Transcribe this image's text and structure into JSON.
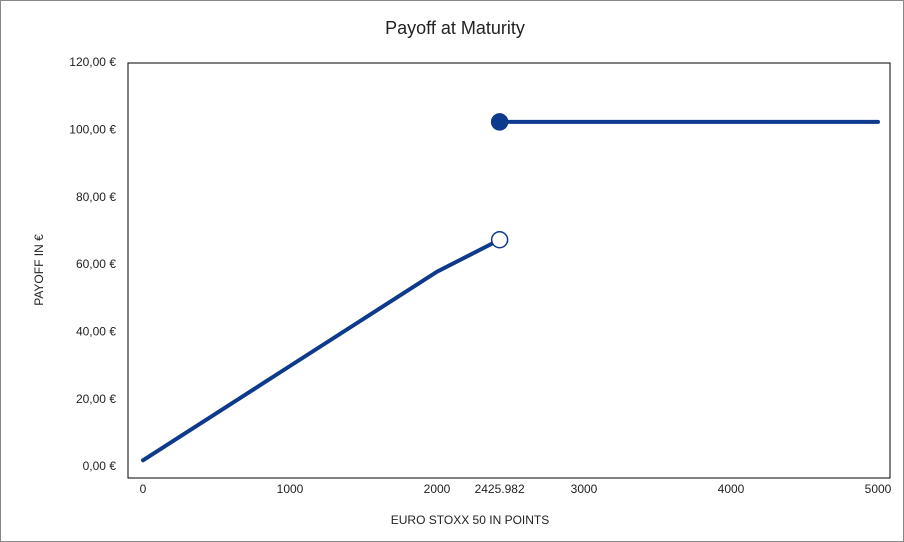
{
  "chart_data": {
    "type": "line",
    "title": "Payoff at Maturity",
    "x_label": "EURO STOXX 50 IN POINTS",
    "y_label": "PAYOFF IN €",
    "series": [
      {
        "color": "#0d3a8c",
        "x": [
          0,
          1000,
          2000,
          2425.982
        ],
        "values": [
          2,
          30,
          58,
          67.5
        ],
        "marker": {
          "at": "last",
          "style": "open"
        }
      },
      {
        "color": "#0d3a8c",
        "x": [
          2425.982,
          5000
        ],
        "values": [
          102.5,
          102.5
        ],
        "marker": {
          "at": "first",
          "style": "filled"
        }
      }
    ],
    "xlim": [
      0,
      5000
    ],
    "xticks": [
      0,
      1000,
      2000,
      2425.982,
      3000,
      4000,
      5000
    ],
    "ylim": [
      0,
      120
    ],
    "yticks": [
      {
        "value": 0,
        "label": "0,00 €"
      },
      {
        "value": 20,
        "label": "20,00 €"
      },
      {
        "value": 40,
        "label": "40,00 €"
      },
      {
        "value": 60,
        "label": "60,00 €"
      },
      {
        "value": 80,
        "label": "80,00 €"
      },
      {
        "value": 100,
        "label": "100,00 €"
      },
      {
        "value": 120,
        "label": "120,00 €"
      }
    ],
    "grid": false
  }
}
